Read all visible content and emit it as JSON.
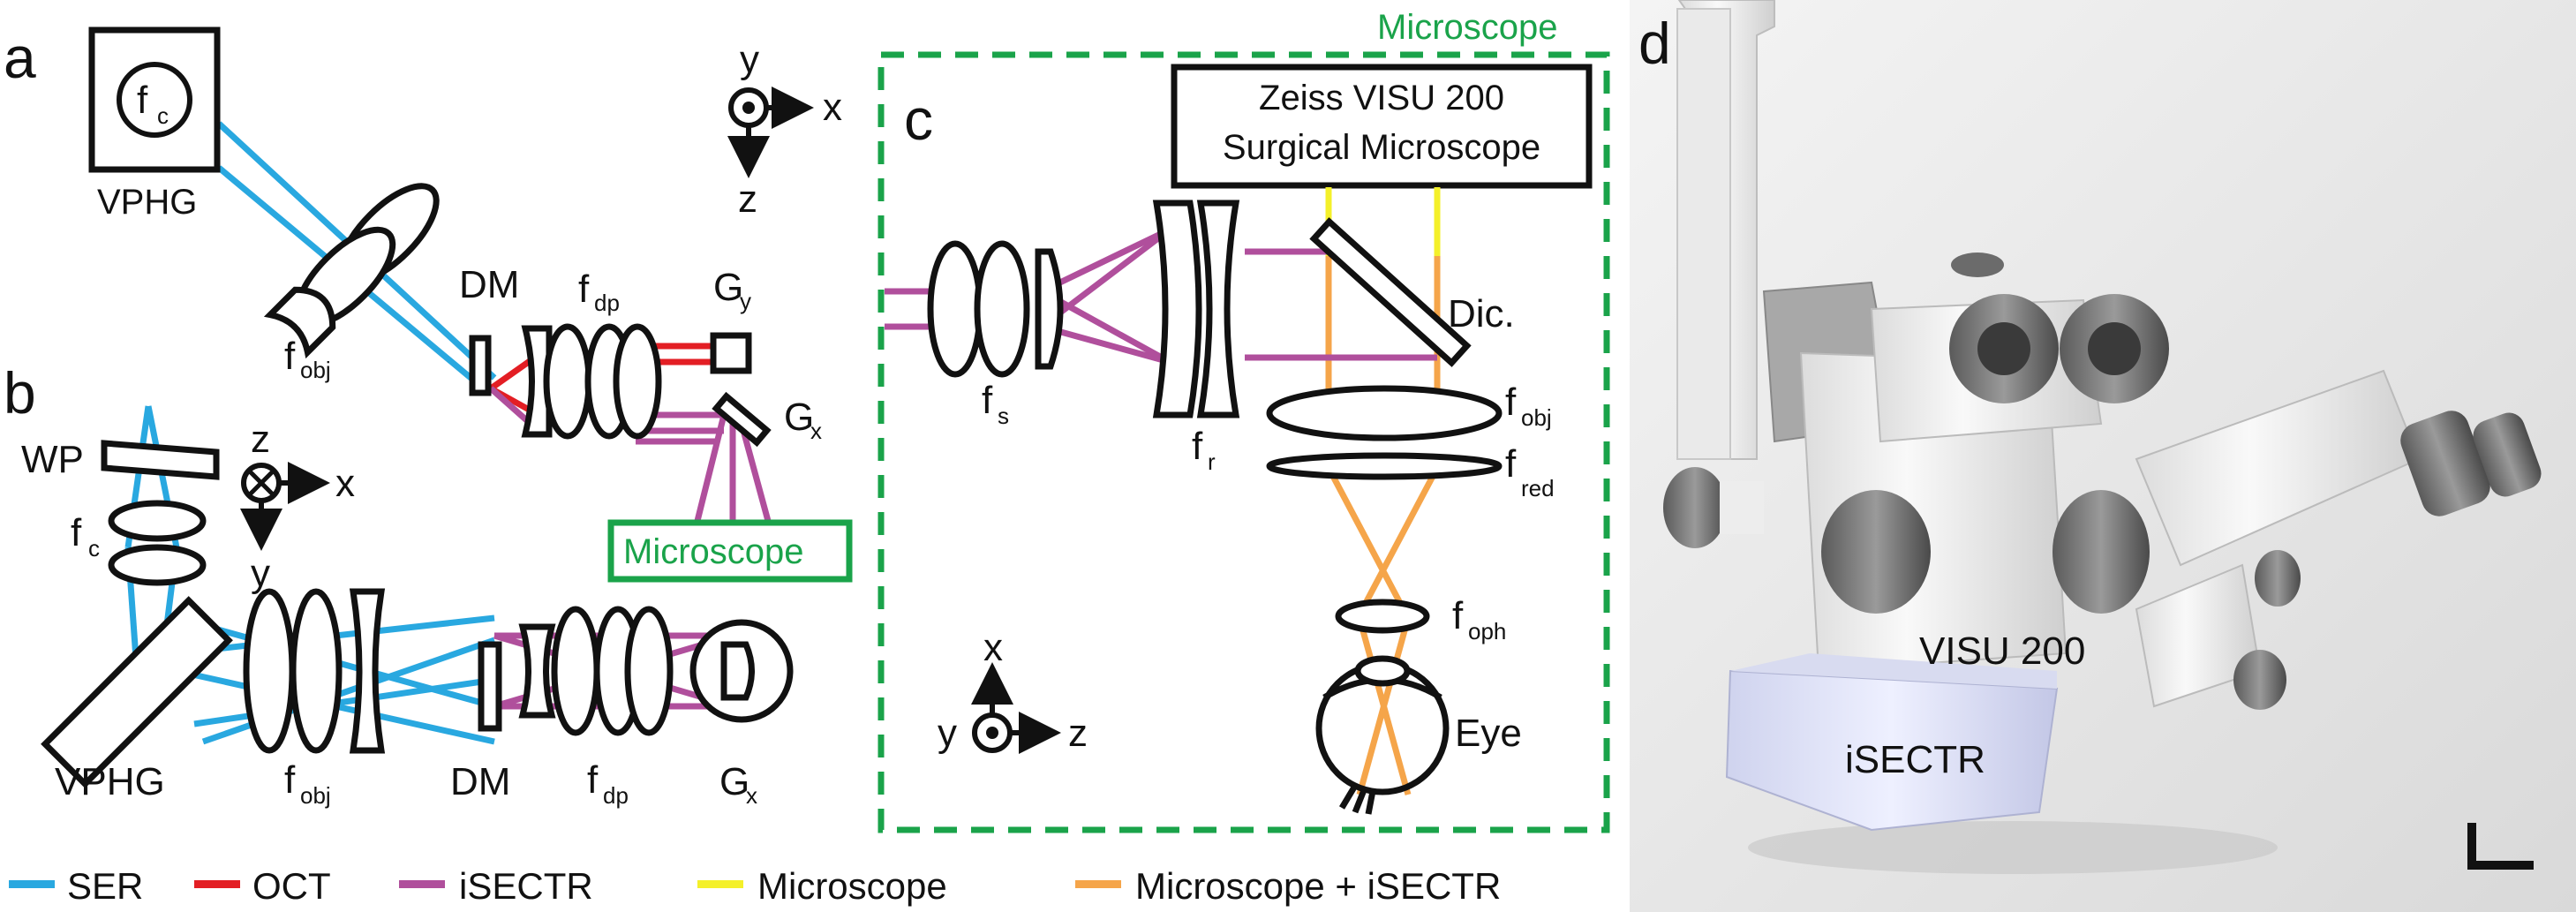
{
  "panels": {
    "a": "a",
    "b": "b",
    "c": "c",
    "d": "d"
  },
  "colors": {
    "ser": "#29a8e0",
    "oct": "#e31e24",
    "isectr": "#b04f9c",
    "microscope": "#f4f02a",
    "microscope_isectr": "#f5a54a",
    "green": "#1aa34a"
  },
  "panel_a": {
    "axis_y": "y",
    "axis_x": "x",
    "axis_z": "z",
    "vphg": "VPHG",
    "fc_main": "f",
    "fc_sub": "c",
    "fobj_main": "f",
    "fobj_sub": "obj",
    "dm": "DM",
    "fdp_main": "f",
    "fdp_sub": "dp",
    "gy_main": "G",
    "gy_sub": "y",
    "gx_main": "G",
    "gx_sub": "x",
    "microscope_box": "Microscope"
  },
  "panel_b": {
    "wp": "WP",
    "axis_z": "z",
    "axis_x": "x",
    "axis_y": "y",
    "fc_main": "f",
    "fc_sub": "c",
    "vphg": "VPHG",
    "fobj_main": "f",
    "fobj_sub": "obj",
    "dm": "DM",
    "fdp_main": "f",
    "fdp_sub": "dp",
    "gx_main": "G",
    "gx_sub": "x"
  },
  "panel_c": {
    "frame_label": "Microscope",
    "zeiss_line1": "Zeiss VISU 200",
    "zeiss_line2": "Surgical Microscope",
    "fs_main": "f",
    "fs_sub": "s",
    "fr_main": "f",
    "fr_sub": "r",
    "dic": "Dic.",
    "fobj_main": "f",
    "fobj_sub": "obj",
    "fred_main": "f",
    "fred_sub": "red",
    "foph_main": "f",
    "foph_sub": "oph",
    "eye": "Eye",
    "axis_x": "x",
    "axis_y": "y",
    "axis_z": "z"
  },
  "panel_d": {
    "visu_label": "VISU 200",
    "isectr_label": "iSECTR"
  },
  "legend": [
    {
      "label": "SER",
      "color": "#29a8e0"
    },
    {
      "label": "OCT",
      "color": "#e31e24"
    },
    {
      "label": "iSECTR",
      "color": "#b04f9c"
    },
    {
      "label": "Microscope",
      "color": "#f4f02a"
    },
    {
      "label": "Microscope + iSECTR",
      "color": "#f5a54a"
    }
  ]
}
